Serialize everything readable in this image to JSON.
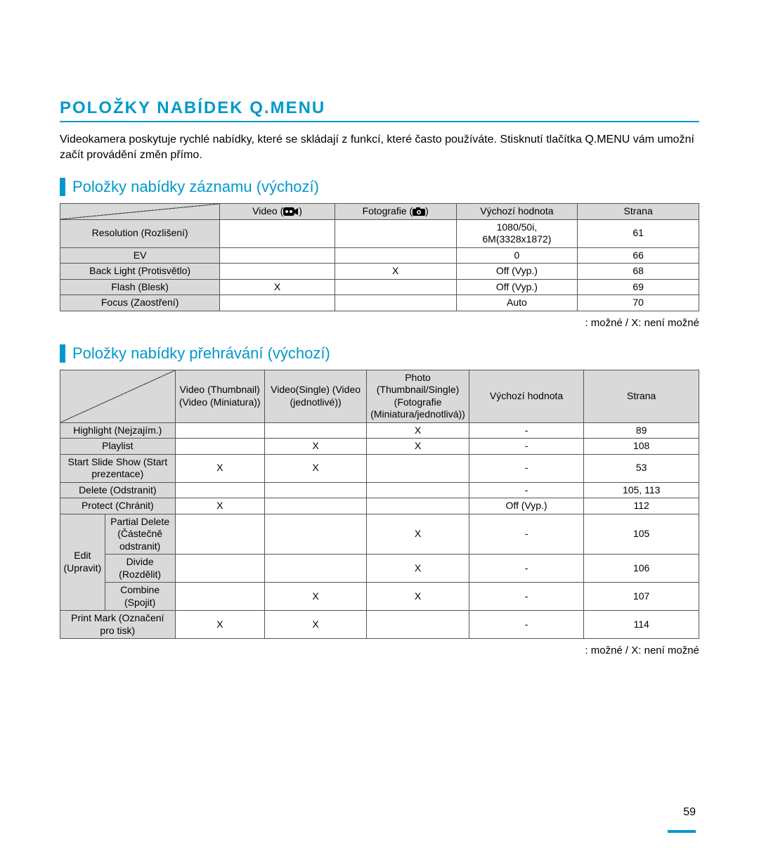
{
  "colors": {
    "accent": "#0099cc",
    "header_bg": "#d9d9d9",
    "border": "#555555",
    "text": "#000000",
    "background": "#ffffff"
  },
  "typography": {
    "title_fontsize": 24,
    "section_fontsize": 22,
    "body_fontsize": 16,
    "table_fontsize": 14,
    "font_family": "Arial"
  },
  "page_number": "59",
  "main_title": "POLOŽKY NABÍDEK Q.MENU",
  "intro": "Videokamera poskytuje rychlé nabídky, které se skládají z funkcí, které často používáte. Stisknutí tlačítka Q.MENU vám umožní začít provádění změn přímo.",
  "legend": ": možné / X: není možné",
  "section1": {
    "title": "Položky nabídky záznamu (výchozí)",
    "headers": {
      "blank": "",
      "video": "Video (",
      "video_suffix": ")",
      "photo": "Fotografie (",
      "photo_suffix": ")",
      "default": "Výchozí hodnota",
      "page": "Strana"
    },
    "rows": [
      {
        "label": "Resolution (Rozlišení)",
        "video": "",
        "photo": "",
        "default": "1080/50i,\n6M(3328x1872)",
        "page": "61"
      },
      {
        "label": "EV",
        "video": "",
        "photo": "",
        "default": "0",
        "page": "66"
      },
      {
        "label": "Back Light (Protisvětlo)",
        "video": "",
        "photo": "X",
        "default": "Off (Vyp.)",
        "page": "68"
      },
      {
        "label": "Flash (Blesk)",
        "video": "X",
        "photo": "",
        "default": "Off (Vyp.)",
        "page": "69"
      },
      {
        "label": "Focus (Zaostření)",
        "video": "",
        "photo": "",
        "default": "Auto",
        "page": "70"
      }
    ]
  },
  "section2": {
    "title": "Položky nabídky přehrávání (výchozí)",
    "headers": {
      "vthumb": "Video (Thumbnail) (Video (Miniatura))",
      "vsingle": "Video(Single) (Video (jednotlivé))",
      "pthumb": "Photo (Thumbnail/Single) (Fotografie (Miniatura/jednotlivá))",
      "default": "Výchozí hodnota",
      "page": "Strana"
    },
    "rows_simple": [
      {
        "label": "Highlight (Nejzajím.)",
        "c1": "",
        "c2": "",
        "c3": "X",
        "def": "-",
        "page": "89"
      },
      {
        "label": "Playlist",
        "c1": "",
        "c2": "X",
        "c3": "X",
        "def": "-",
        "page": "108"
      },
      {
        "label": "Start Slide Show (Start prezentace)",
        "c1": "X",
        "c2": "X",
        "c3": "",
        "def": "-",
        "page": "53"
      },
      {
        "label": "Delete (Odstranit)",
        "c1": "",
        "c2": "",
        "c3": "",
        "def": "-",
        "page": "105, 113"
      },
      {
        "label": "Protect (Chránit)",
        "c1": "X",
        "c2": "",
        "c3": "",
        "def": "Off (Vyp.)",
        "page": "112"
      }
    ],
    "edit_group": {
      "label": "Edit (Upravit)",
      "rows": [
        {
          "label": "Partial Delete (Částečně odstranit)",
          "c1": "",
          "c2": "",
          "c3": "X",
          "def": "-",
          "page": "105"
        },
        {
          "label": "Divide (Rozdělit)",
          "c1": "",
          "c2": "",
          "c3": "X",
          "def": "-",
          "page": "106"
        },
        {
          "label": "Combine (Spojit)",
          "c1": "",
          "c2": "X",
          "c3": "X",
          "def": "-",
          "page": "107"
        }
      ]
    },
    "last_row": {
      "label": "Print Mark (Označení pro tisk)",
      "c1": "X",
      "c2": "X",
      "c3": "",
      "def": "-",
      "page": "114"
    }
  }
}
